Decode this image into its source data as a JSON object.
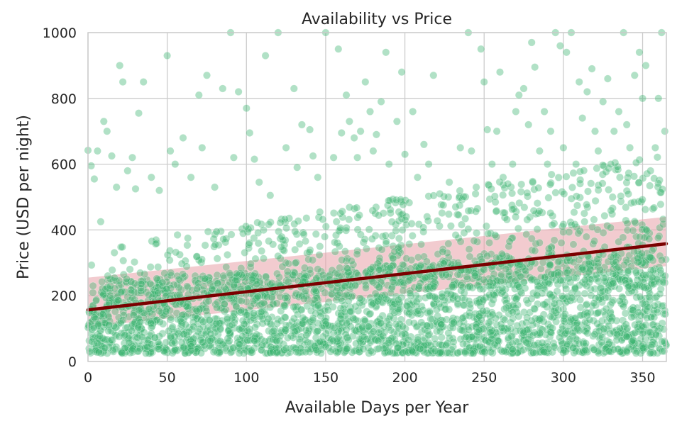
{
  "chart_data": {
    "type": "scatter",
    "title": "Availability vs Price",
    "xlabel": "Available Days per Year",
    "ylabel": "Price (USD per night)",
    "xlim": [
      0,
      365
    ],
    "ylim": [
      0,
      1000
    ],
    "x_ticks": [
      0,
      50,
      100,
      150,
      200,
      250,
      300,
      350
    ],
    "y_ticks": [
      0,
      200,
      400,
      600,
      800,
      1000
    ],
    "grid": true,
    "point_color": "#3cb371",
    "point_opacity": 0.4,
    "regression": {
      "color": "#7b0000",
      "ci_color": "#e8a0a8",
      "x": [
        0,
        365
      ],
      "y": [
        157,
        358
      ],
      "ci_lower": [
        105,
        290
      ],
      "ci_upper": [
        255,
        440
      ]
    },
    "series": [
      {
        "points": [
          [
            0,
            642
          ],
          [
            2,
            595
          ],
          [
            4,
            555
          ],
          [
            6,
            640
          ],
          [
            8,
            425
          ],
          [
            10,
            730
          ],
          [
            12,
            700
          ],
          [
            15,
            625
          ],
          [
            18,
            530
          ],
          [
            20,
            900
          ],
          [
            22,
            850
          ],
          [
            25,
            580
          ],
          [
            28,
            620
          ],
          [
            30,
            525
          ],
          [
            32,
            755
          ],
          [
            35,
            850
          ],
          [
            40,
            560
          ],
          [
            45,
            520
          ],
          [
            50,
            930
          ],
          [
            52,
            640
          ],
          [
            55,
            600
          ],
          [
            60,
            680
          ],
          [
            65,
            560
          ],
          [
            70,
            810
          ],
          [
            72,
            650
          ],
          [
            75,
            870
          ],
          [
            80,
            530
          ],
          [
            85,
            830
          ],
          [
            90,
            1000
          ],
          [
            92,
            620
          ],
          [
            95,
            820
          ],
          [
            100,
            770
          ],
          [
            102,
            695
          ],
          [
            105,
            615
          ],
          [
            108,
            545
          ],
          [
            112,
            930
          ],
          [
            115,
            505
          ],
          [
            120,
            1000
          ],
          [
            125,
            650
          ],
          [
            130,
            830
          ],
          [
            132,
            590
          ],
          [
            135,
            720
          ],
          [
            140,
            705
          ],
          [
            142,
            625
          ],
          [
            145,
            560
          ],
          [
            150,
            1000
          ],
          [
            155,
            620
          ],
          [
            158,
            950
          ],
          [
            160,
            695
          ],
          [
            163,
            810
          ],
          [
            165,
            730
          ],
          [
            168,
            680
          ],
          [
            170,
            620
          ],
          [
            172,
            700
          ],
          [
            175,
            850
          ],
          [
            178,
            760
          ],
          [
            180,
            640
          ],
          [
            182,
            690
          ],
          [
            185,
            790
          ],
          [
            188,
            940
          ],
          [
            190,
            600
          ],
          [
            195,
            730
          ],
          [
            198,
            880
          ],
          [
            200,
            630
          ],
          [
            205,
            760
          ],
          [
            208,
            560
          ],
          [
            212,
            660
          ],
          [
            215,
            600
          ],
          [
            218,
            870
          ],
          [
            222,
            510
          ],
          [
            228,
            545
          ],
          [
            232,
            470
          ],
          [
            235,
            650
          ],
          [
            240,
            1000
          ],
          [
            242,
            640
          ],
          [
            245,
            530
          ],
          [
            248,
            950
          ],
          [
            250,
            850
          ],
          [
            252,
            705
          ],
          [
            255,
            600
          ],
          [
            258,
            700
          ],
          [
            260,
            880
          ],
          [
            262,
            560
          ],
          [
            265,
            540
          ],
          [
            268,
            600
          ],
          [
            270,
            760
          ],
          [
            272,
            810
          ],
          [
            275,
            830
          ],
          [
            278,
            720
          ],
          [
            280,
            970
          ],
          [
            282,
            895
          ],
          [
            285,
            640
          ],
          [
            288,
            760
          ],
          [
            290,
            600
          ],
          [
            292,
            700
          ],
          [
            295,
            1000
          ],
          [
            298,
            960
          ],
          [
            300,
            650
          ],
          [
            302,
            940
          ],
          [
            305,
            1000
          ],
          [
            308,
            600
          ],
          [
            310,
            850
          ],
          [
            312,
            740
          ],
          [
            315,
            820
          ],
          [
            318,
            890
          ],
          [
            320,
            700
          ],
          [
            322,
            640
          ],
          [
            325,
            790
          ],
          [
            328,
            860
          ],
          [
            330,
            600
          ],
          [
            332,
            700
          ],
          [
            335,
            760
          ],
          [
            338,
            1000
          ],
          [
            340,
            720
          ],
          [
            342,
            650
          ],
          [
            345,
            870
          ],
          [
            348,
            940
          ],
          [
            350,
            800
          ],
          [
            352,
            900
          ],
          [
            355,
            580
          ],
          [
            358,
            650
          ],
          [
            360,
            800
          ],
          [
            362,
            1000
          ],
          [
            364,
            700
          ]
        ]
      }
    ]
  }
}
